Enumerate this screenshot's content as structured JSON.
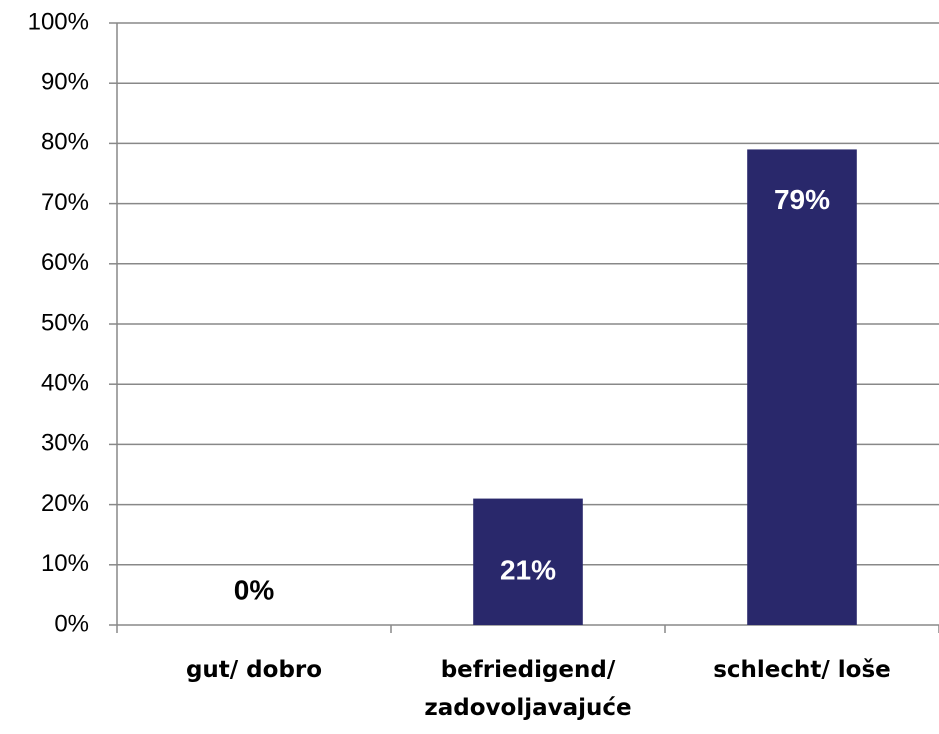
{
  "chart_data": {
    "type": "bar",
    "categories": [
      "gut/ dobro",
      "befriedigend/ zadovoljavajuće",
      "schlecht/ loše"
    ],
    "values": [
      0,
      21,
      79
    ],
    "value_labels": [
      "0%",
      "21%",
      "79%"
    ],
    "color": "#29286b",
    "ylim": [
      0,
      100
    ],
    "yticks": [
      {
        "value": 0,
        "label": "0%"
      },
      {
        "value": 10,
        "label": "10%"
      },
      {
        "value": 20,
        "label": "20%"
      },
      {
        "value": 30,
        "label": "30%"
      },
      {
        "value": 40,
        "label": "40%"
      },
      {
        "value": 50,
        "label": "50%"
      },
      {
        "value": 60,
        "label": "60%"
      },
      {
        "value": 70,
        "label": "70%"
      },
      {
        "value": 80,
        "label": "80%"
      },
      {
        "value": 90,
        "label": "90%"
      },
      {
        "value": 100,
        "label": "100%"
      }
    ],
    "grid": true
  }
}
